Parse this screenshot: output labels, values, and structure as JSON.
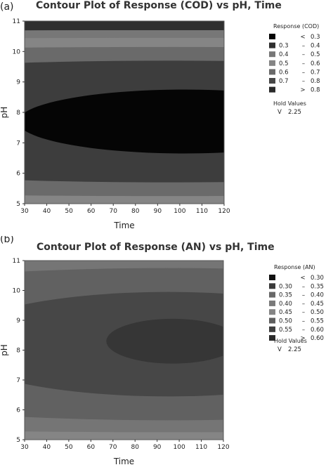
{
  "chart_data": [
    {
      "panel_label": "(a)",
      "type": "contour",
      "title": "Contour Plot of Response (COD) vs pH, Time",
      "xlabel": "Time",
      "ylabel": "pH",
      "xlim": [
        30,
        120
      ],
      "ylim": [
        5,
        11
      ],
      "x_ticks": [
        30,
        40,
        50,
        60,
        70,
        80,
        90,
        100,
        110,
        120
      ],
      "y_ticks": [
        5,
        6,
        7,
        8,
        9,
        10,
        11
      ],
      "legend_title": "Response (COD)",
      "legend_placement": "right",
      "legend": [
        {
          "op": "<",
          "lo": "",
          "hi": "0.3",
          "color": "#050505"
        },
        {
          "op": "–",
          "lo": "0.3",
          "hi": "0.4",
          "color": "#2f2f2f"
        },
        {
          "op": "–",
          "lo": "0.4",
          "hi": "0.5",
          "color": "#777777"
        },
        {
          "op": "–",
          "lo": "0.5",
          "hi": "0.6",
          "color": "#858585"
        },
        {
          "op": "–",
          "lo": "0.6",
          "hi": "0.7",
          "color": "#6a6a6a"
        },
        {
          "op": "–",
          "lo": "0.7",
          "hi": "0.8",
          "color": "#474747"
        },
        {
          "op": ">",
          "lo": "",
          "hi": "0.8",
          "color": "#2a2a2a"
        }
      ],
      "hold_title": "Hold Values",
      "hold_values": [
        {
          "name": "V",
          "value": "2.25"
        }
      ],
      "regions": [
        {
          "cx": 102,
          "cy": 7.7,
          "rx": 75,
          "ry": 1.05,
          "color": "#050505"
        },
        {
          "cx": 95,
          "cy": 7.7,
          "rx": 250,
          "ry": 2.0,
          "color": "#3d3d3d"
        },
        {
          "cx": 95,
          "cy": 7.7,
          "rx": 500,
          "ry": 2.45,
          "color": "#6a6a6a"
        },
        {
          "cx": 95,
          "cy": 7.7,
          "rx": 800,
          "ry": 2.75,
          "color": "#858585"
        },
        {
          "cx": 95,
          "cy": 7.7,
          "rx": 1200,
          "ry": 3.0,
          "color": "#777777"
        }
      ],
      "background_color": "#2f2f2f"
    },
    {
      "panel_label": "(b)",
      "type": "contour",
      "title": "Contour Plot of Response (AN) vs pH, Time",
      "xlabel": "Time",
      "ylabel": "pH",
      "xlim": [
        30,
        120
      ],
      "ylim": [
        5,
        11
      ],
      "x_ticks": [
        30,
        40,
        50,
        60,
        70,
        80,
        90,
        100,
        110,
        120
      ],
      "y_ticks": [
        5,
        6,
        7,
        8,
        9,
        10,
        11
      ],
      "legend_title": "Response (AN)",
      "legend_placement": "right",
      "legend": [
        {
          "op": "<",
          "lo": "",
          "hi": "0.30",
          "color": "#111111"
        },
        {
          "op": "–",
          "lo": "0.30",
          "hi": "0.35",
          "color": "#3a3a3a"
        },
        {
          "op": "–",
          "lo": "0.35",
          "hi": "0.40",
          "color": "#686868"
        },
        {
          "op": "–",
          "lo": "0.40",
          "hi": "0.45",
          "color": "#7a7a7a"
        },
        {
          "op": "–",
          "lo": "0.45",
          "hi": "0.50",
          "color": "#858585"
        },
        {
          "op": "–",
          "lo": "0.50",
          "hi": "0.55",
          "color": "#5e5e5e"
        },
        {
          "op": "–",
          "lo": "0.55",
          "hi": "0.60",
          "color": "#3f3f3f"
        },
        {
          "op": ">",
          "lo": "",
          "hi": "0.60",
          "color": "#2a2a2a"
        }
      ],
      "hold_title": "Hold Values",
      "hold_values": [
        {
          "name": "V",
          "value": "2.25"
        }
      ],
      "regions": [
        {
          "cx": 97,
          "cy": 8.3,
          "rx": 30,
          "ry": 0.75,
          "color": "#363636"
        },
        {
          "cx": 95,
          "cy": 8.2,
          "rx": 100,
          "ry": 1.75,
          "color": "#474747"
        },
        {
          "cx": 95,
          "cy": 8.2,
          "rx": 220,
          "ry": 2.55,
          "color": "#616161"
        },
        {
          "cx": 95,
          "cy": 8.2,
          "rx": 500,
          "ry": 2.95,
          "color": "#757575"
        },
        {
          "cx": 95,
          "cy": 8.2,
          "rx": 900,
          "ry": 3.25,
          "color": "#858585"
        },
        {
          "cx": 95,
          "cy": 8.2,
          "rx": 1400,
          "ry": 3.55,
          "color": "#6c6c6c"
        }
      ],
      "background_color": "#3f3f3f"
    }
  ]
}
